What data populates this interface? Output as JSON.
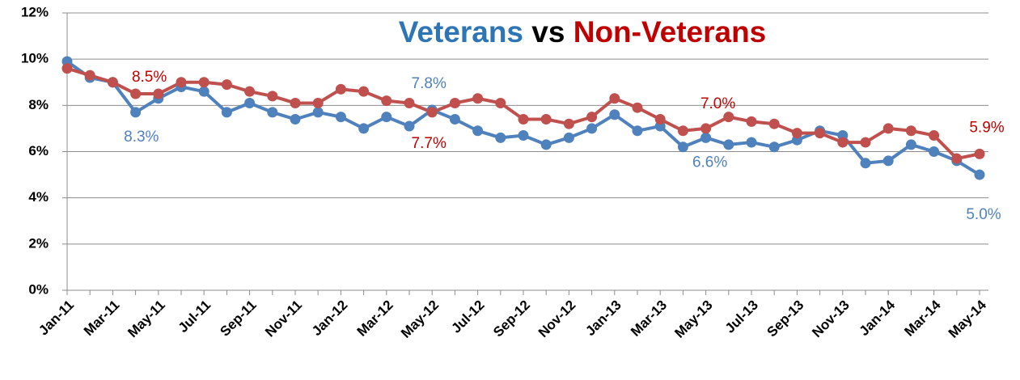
{
  "chart_data": {
    "type": "line",
    "title": [
      "Veterans",
      "vs",
      "Non-Veterans"
    ],
    "title_colors": [
      "#2e75b6",
      "#000000",
      "#c00000"
    ],
    "categories": [
      "Jan-11",
      null,
      "Mar-11",
      null,
      "May-11",
      null,
      "Jul-11",
      null,
      "Sep-11",
      null,
      "Nov-11",
      null,
      "Jan-12",
      null,
      "Mar-12",
      null,
      "May-12",
      null,
      "Jul-12",
      null,
      "Sep-12",
      null,
      "Nov-12",
      null,
      "Jan-13",
      null,
      "Mar-13",
      null,
      "May-13",
      null,
      "Jul-13",
      null,
      "Sep-13",
      null,
      "Nov-13",
      null,
      "Jan-14",
      null,
      "Mar-14",
      null,
      "May-14"
    ],
    "series": [
      {
        "name": "Veterans",
        "color": "#4f81bd",
        "label_color": "#4f81bd",
        "values": [
          9.9,
          9.2,
          9.0,
          7.7,
          8.3,
          8.8,
          8.6,
          7.7,
          8.1,
          7.7,
          7.4,
          7.7,
          7.5,
          7.0,
          7.5,
          7.1,
          7.8,
          7.4,
          6.9,
          6.6,
          6.7,
          6.3,
          6.6,
          7.0,
          7.6,
          6.9,
          7.1,
          6.2,
          6.6,
          6.3,
          6.4,
          6.2,
          6.5,
          6.9,
          6.7,
          5.5,
          5.6,
          6.3,
          6.0,
          5.6,
          5.0
        ],
        "value_labels": [
          null,
          null,
          null,
          null,
          "8.3%",
          null,
          null,
          null,
          null,
          null,
          null,
          null,
          null,
          null,
          null,
          null,
          "7.8%",
          null,
          null,
          null,
          null,
          null,
          null,
          null,
          null,
          null,
          null,
          null,
          "6.6%",
          null,
          null,
          null,
          null,
          null,
          null,
          null,
          null,
          null,
          null,
          null,
          "5.0%"
        ]
      },
      {
        "name": "Non-Veterans",
        "color": "#c0504d",
        "label_color": "#c00000",
        "values": [
          9.6,
          9.3,
          9.0,
          8.5,
          8.5,
          9.0,
          9.0,
          8.9,
          8.6,
          8.4,
          8.1,
          8.1,
          8.7,
          8.6,
          8.2,
          8.1,
          7.7,
          8.1,
          8.3,
          8.1,
          7.4,
          7.4,
          7.2,
          7.5,
          8.3,
          7.9,
          7.4,
          6.9,
          7.0,
          7.5,
          7.3,
          7.2,
          6.8,
          6.8,
          6.4,
          6.4,
          7.0,
          6.9,
          6.7,
          5.7,
          5.9
        ],
        "value_labels": [
          null,
          null,
          null,
          "8.5%",
          null,
          null,
          null,
          null,
          null,
          null,
          null,
          null,
          null,
          null,
          null,
          null,
          "7.7%",
          null,
          null,
          null,
          null,
          null,
          null,
          null,
          null,
          null,
          null,
          null,
          "7.0%",
          null,
          null,
          null,
          null,
          null,
          null,
          null,
          null,
          null,
          null,
          null,
          "5.9%"
        ]
      }
    ],
    "ylim": [
      0,
      12
    ],
    "yticks": [
      {
        "value": 0,
        "label": "0%"
      },
      {
        "value": 2,
        "label": "2%"
      },
      {
        "value": 4,
        "label": "4%"
      },
      {
        "value": 6,
        "label": "6%"
      },
      {
        "value": 8,
        "label": "8%"
      },
      {
        "value": 10,
        "label": "10%"
      },
      {
        "value": 12,
        "label": "12%"
      }
    ],
    "grid": true
  }
}
